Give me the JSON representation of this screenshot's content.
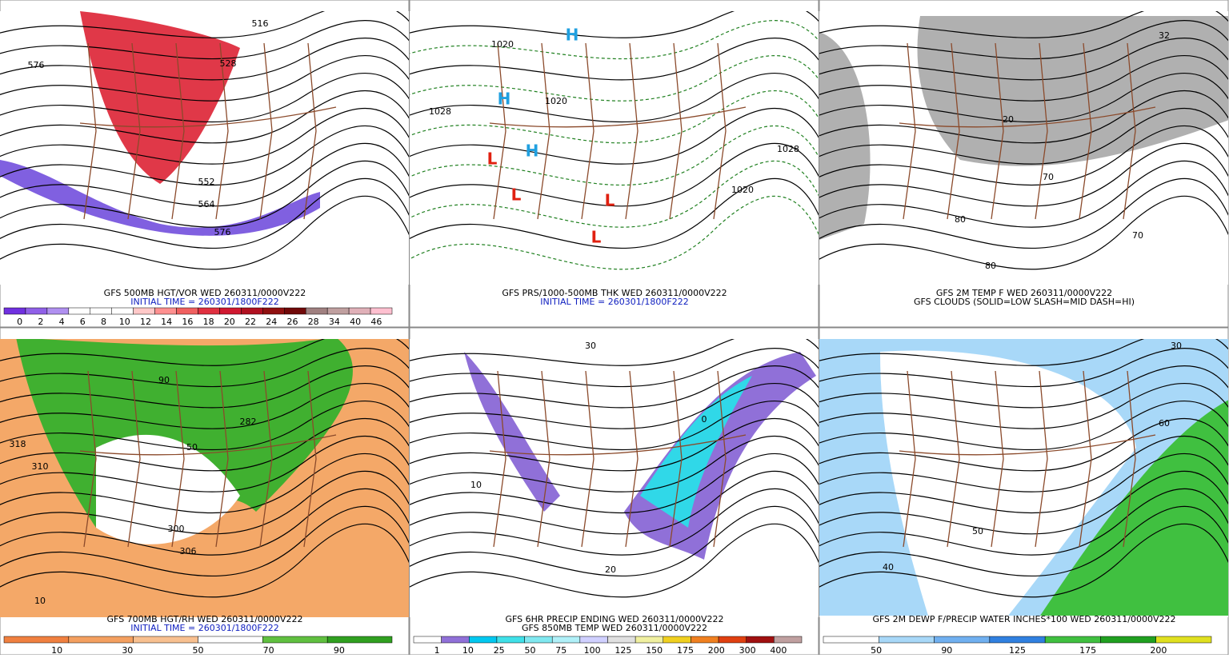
{
  "panels": [
    {
      "caption": [
        "GFS 500MB HGT/VOR WED 260311/0000V222",
        "INITIAL TIME = 260301/1800F222"
      ],
      "map_labels": [
        "576",
        "516",
        "528",
        "552",
        "564",
        "576"
      ],
      "colorbar": {
        "colors": [
          "#7030e0",
          "#9060e8",
          "#b090f0",
          "#ffffff",
          "#ffffff",
          "#ffffff",
          "#ffc8c8",
          "#ff9090",
          "#f06060",
          "#e03040",
          "#d01830",
          "#b01020",
          "#901010",
          "#700808",
          "#a08080",
          "#c0a0a0",
          "#e0b0b8",
          "#ffc0d0"
        ],
        "labels": [
          0,
          2,
          4,
          6,
          8,
          10,
          12,
          14,
          16,
          18,
          20,
          22,
          24,
          26,
          28,
          34,
          40,
          46
        ]
      }
    },
    {
      "caption": [
        "GFS PRS/1000-500MB THK WED 260311/0000V222",
        "INITIAL TIME = 260301/1800F222"
      ],
      "map_labels": [
        "1020",
        "1028",
        "1020",
        "1028",
        "1020",
        "L",
        "L",
        "L",
        "L",
        "H",
        "H",
        "H"
      ]
    },
    {
      "caption": [
        "GFS 2M TEMP F WED 260311/0000V222",
        "GFS CLOUDS (SOLID=LOW SLASH=MID DASH=HI)"
      ],
      "map_labels": [
        "32",
        "20",
        "70",
        "80",
        "80",
        "70"
      ]
    },
    {
      "caption": [
        "GFS 700MB HGT/RH WED 260311/0000V222",
        "INITIAL TIME = 260301/1800F222"
      ],
      "map_labels": [
        "318",
        "310",
        "300",
        "306",
        "282",
        "10",
        "50",
        "90"
      ],
      "colorbar": {
        "colors": [
          "#f08040",
          "#f4a060",
          "#f8c090",
          "#ffffff",
          "#60c040",
          "#30a020"
        ],
        "labels": [
          10,
          30,
          50,
          70,
          90
        ]
      }
    },
    {
      "caption": [
        "GFS 6HR PRECIP ENDING WED 260311/0000V222",
        "GFS 850MB TEMP WED 260311/0000V222"
      ],
      "map_labels": [
        "30",
        "20",
        "10",
        "0"
      ],
      "colorbar": {
        "colors": [
          "#ffffff",
          "#9070d8",
          "#00c8f0",
          "#40e0e8",
          "#80e8f0",
          "#b0f0f8",
          "#d0d0ff",
          "#e0e0e0",
          "#f0f0a0",
          "#f0d020",
          "#f08020",
          "#e04010",
          "#a01010",
          "#c0a0a0"
        ],
        "labels": [
          1,
          10,
          25,
          50,
          75,
          100,
          125,
          150,
          175,
          200,
          300,
          400
        ]
      }
    },
    {
      "caption": [
        "GFS 2M DEWP F/PRECIP WATER INCHES*100 WED 260311/0000V222"
      ],
      "map_labels": [
        "30",
        "50",
        "60",
        "40"
      ],
      "colorbar": {
        "colors": [
          "#ffffff",
          "#a8d8f8",
          "#70b0f0",
          "#3080e0",
          "#40c040",
          "#20a020",
          "#e0e020"
        ],
        "labels": [
          50,
          90,
          125,
          175,
          200
        ]
      }
    }
  ]
}
